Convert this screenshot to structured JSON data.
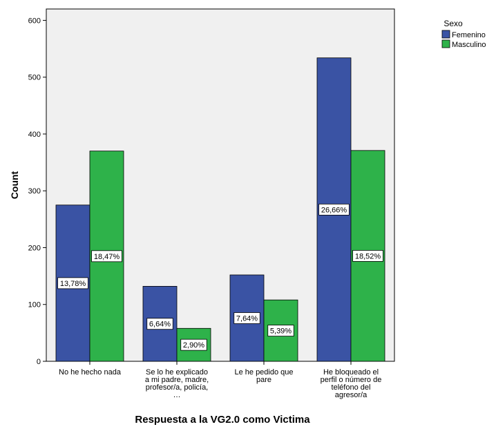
{
  "chart_data": {
    "type": "bar",
    "xlabel": "Respuesta a la VG2.0 como Victima",
    "ylabel": "Count",
    "ylim": [
      0,
      620
    ],
    "yticks": [
      0,
      100,
      200,
      300,
      400,
      500,
      600
    ],
    "grid": false,
    "legend_title": "Sexo",
    "legend_placement": "top-right",
    "categories": [
      [
        "No he hecho nada"
      ],
      [
        "Se lo he explicado",
        "a mi padre, madre,",
        "profesor/a, policía,",
        "…"
      ],
      [
        "Le he pedido que",
        "pare"
      ],
      [
        "He bloqueado el",
        "perfil o número de",
        "teléfono del",
        "agresor/a"
      ]
    ],
    "series": [
      {
        "name": "Femenino",
        "color": "#3a53a4",
        "values": [
          275,
          132,
          152,
          534
        ],
        "labels": [
          "13,78%",
          "6,64%",
          "7,64%",
          "26,66%"
        ]
      },
      {
        "name": "Masculino",
        "color": "#2eb24a",
        "values": [
          370,
          58,
          108,
          371
        ],
        "labels": [
          "18,47%",
          "2,90%",
          "5,39%",
          "18,52%"
        ]
      }
    ],
    "plot_background": "#f0f0f0"
  }
}
